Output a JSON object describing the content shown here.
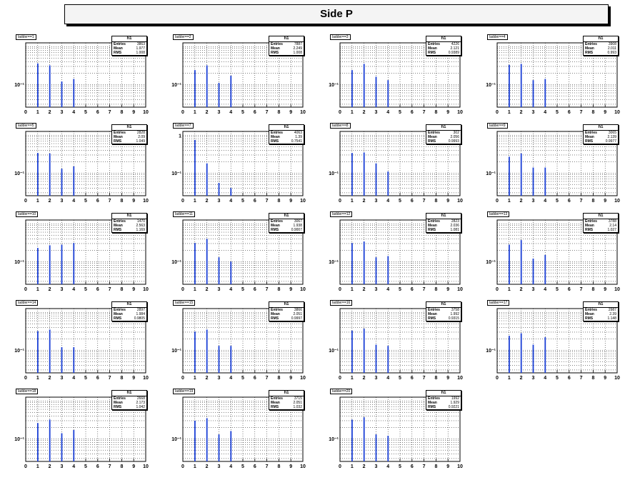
{
  "title": "Side P",
  "chart_data": [
    {
      "type": "bar",
      "label": "ladder==1",
      "stats": {
        "name": "h1",
        "entries": "3863",
        "mean": "1.977",
        "rms": "1.008"
      },
      "x": [
        1,
        2,
        3,
        4
      ],
      "values": [
        0.36,
        0.32,
        0.12,
        0.14
      ],
      "xlim": [
        0,
        10
      ],
      "xticks": [
        0,
        1,
        2,
        3,
        4,
        5,
        6,
        7,
        8,
        9,
        10
      ],
      "yscale": "log",
      "ytick_label": "10⁻¹"
    },
    {
      "type": "bar",
      "label": "ladder==2",
      "stats": {
        "name": "h1",
        "entries": "7887",
        "mean": "2.249",
        "rms": "1.008"
      },
      "x": [
        1,
        2,
        3,
        4
      ],
      "values": [
        0.24,
        0.32,
        0.11,
        0.17
      ],
      "xlim": [
        0,
        10
      ],
      "xticks": [
        0,
        1,
        2,
        3,
        4,
        5,
        6,
        7,
        8,
        9,
        10
      ],
      "yscale": "log",
      "ytick_label": "10⁻¹"
    },
    {
      "type": "bar",
      "label": "ladder==3",
      "stats": {
        "name": "h1",
        "entries": "4226",
        "mean": "2.121",
        "rms": "0.9389"
      },
      "x": [
        1,
        2,
        3,
        4
      ],
      "values": [
        0.24,
        0.35,
        0.16,
        0.13
      ],
      "xlim": [
        0,
        10
      ],
      "xticks": [
        0,
        1,
        2,
        3,
        4,
        5,
        6,
        7,
        8,
        9,
        10
      ],
      "yscale": "log",
      "ytick_label": "10⁻¹"
    },
    {
      "type": "bar",
      "label": "ladder==4",
      "stats": {
        "name": "h1",
        "entries": "3908",
        "mean": "2.011",
        "rms": "0.993"
      },
      "x": [
        1,
        2,
        3,
        4
      ],
      "values": [
        0.33,
        0.35,
        0.13,
        0.14
      ],
      "xlim": [
        0,
        10
      ],
      "xticks": [
        0,
        1,
        2,
        3,
        4,
        5,
        6,
        7,
        8,
        9,
        10
      ],
      "yscale": "log",
      "ytick_label": "10⁻¹"
    },
    {
      "type": "bar",
      "label": "ladder==5",
      "stats": {
        "name": "h1",
        "entries": "2828",
        "mean": "2.09",
        "rms": "1.049"
      },
      "x": [
        1,
        2,
        3,
        4
      ],
      "values": [
        0.34,
        0.33,
        0.13,
        0.15
      ],
      "xlim": [
        0,
        10
      ],
      "xticks": [
        0,
        1,
        2,
        3,
        4,
        5,
        6,
        7,
        8,
        9,
        10
      ],
      "yscale": "log",
      "ytick_label": "10⁻¹"
    },
    {
      "type": "bar",
      "label": "ladder==7",
      "stats": {
        "name": "h1",
        "entries": "4063",
        "mean": "1.39",
        "rms": "0.7541"
      },
      "x": [
        1,
        2,
        3,
        4
      ],
      "values": [
        0.75,
        0.18,
        0.055,
        0.04
      ],
      "xlim": [
        0,
        10
      ],
      "xticks": [
        0,
        1,
        2,
        3,
        4,
        5,
        6,
        7,
        8,
        9,
        10
      ],
      "yscale": "log",
      "ytick_label": "10⁻¹",
      "ytick_top": "1"
    },
    {
      "type": "bar",
      "label": "ladder==8",
      "stats": {
        "name": "h1",
        "entries": "302",
        "mean": "2.056",
        "rms": "0.9993"
      },
      "x": [
        1,
        2,
        3,
        4
      ],
      "values": [
        0.34,
        0.35,
        0.18,
        0.11
      ],
      "xlim": [
        0,
        10
      ],
      "xticks": [
        0,
        1,
        2,
        3,
        4,
        5,
        6,
        7,
        8,
        9,
        10
      ],
      "yscale": "log",
      "ytick_label": "10⁻¹"
    },
    {
      "type": "bar",
      "label": "ladder==9",
      "stats": {
        "name": "h1",
        "entries": "3065",
        "mean": "2.139",
        "rms": "0.9977"
      },
      "x": [
        1,
        2,
        3,
        4
      ],
      "values": [
        0.27,
        0.33,
        0.14,
        0.14
      ],
      "xlim": [
        0,
        10
      ],
      "xticks": [
        0,
        1,
        2,
        3,
        4,
        5,
        6,
        7,
        8,
        9,
        10
      ],
      "yscale": "log",
      "ytick_label": "10⁻¹"
    },
    {
      "type": "bar",
      "label": "ladder==10",
      "stats": {
        "name": "h1",
        "entries": "1470",
        "mean": "2.563",
        "rms": "1.169"
      },
      "x": [
        1,
        2,
        3,
        4
      ],
      "values": [
        0.23,
        0.27,
        0.28,
        0.31
      ],
      "xlim": [
        0,
        10
      ],
      "xticks": [
        0,
        1,
        2,
        3,
        4,
        5,
        6,
        7,
        8,
        9,
        10
      ],
      "yscale": "log",
      "ytick_label": "10⁻¹"
    },
    {
      "type": "bar",
      "label": "ladder==11",
      "stats": {
        "name": "h1",
        "entries": "3067",
        "mean": "1.938",
        "rms": "0.9007"
      },
      "x": [
        1,
        2,
        3,
        4
      ],
      "values": [
        0.31,
        0.4,
        0.13,
        0.1
      ],
      "xlim": [
        0,
        10
      ],
      "xticks": [
        0,
        1,
        2,
        3,
        4,
        5,
        6,
        7,
        8,
        9,
        10
      ],
      "yscale": "log",
      "ytick_label": "10⁻¹"
    },
    {
      "type": "bar",
      "label": "ladder==12",
      "stats": {
        "name": "h1",
        "entries": "2823",
        "mean": "2.036",
        "rms": "1.081"
      },
      "x": [
        1,
        2,
        3,
        4
      ],
      "values": [
        0.31,
        0.34,
        0.13,
        0.14
      ],
      "xlim": [
        0,
        10
      ],
      "xticks": [
        0,
        1,
        2,
        3,
        4,
        5,
        6,
        7,
        8,
        9,
        10
      ],
      "yscale": "log",
      "ytick_label": "10⁻¹"
    },
    {
      "type": "bar",
      "label": "ladder==13",
      "stats": {
        "name": "h1",
        "entries": "3788",
        "mean": "2.14",
        "rms": "1.027"
      },
      "x": [
        1,
        2,
        3,
        4
      ],
      "values": [
        0.28,
        0.37,
        0.12,
        0.15
      ],
      "xlim": [
        0,
        10
      ],
      "xticks": [
        0,
        1,
        2,
        3,
        4,
        5,
        6,
        7,
        8,
        9,
        10
      ],
      "yscale": "log",
      "ytick_label": "10⁻¹"
    },
    {
      "type": "bar",
      "label": "ladder==14",
      "stats": {
        "name": "h1",
        "entries": "2897",
        "mean": "1.984",
        "rms": "0.9805"
      },
      "x": [
        1,
        2,
        3,
        4
      ],
      "values": [
        0.32,
        0.35,
        0.12,
        0.12
      ],
      "xlim": [
        0,
        10
      ],
      "xticks": [
        0,
        1,
        2,
        3,
        4,
        5,
        6,
        7,
        8,
        9,
        10
      ],
      "yscale": "log",
      "ytick_label": "10⁻¹"
    },
    {
      "type": "bar",
      "label": "ladder==15",
      "stats": {
        "name": "h1",
        "entries": "3866",
        "mean": "2.051",
        "rms": "0.9997"
      },
      "x": [
        1,
        2,
        3,
        4
      ],
      "values": [
        0.31,
        0.35,
        0.13,
        0.13
      ],
      "xlim": [
        0,
        10
      ],
      "xticks": [
        0,
        1,
        2,
        3,
        4,
        5,
        6,
        7,
        8,
        9,
        10
      ],
      "yscale": "log",
      "ytick_label": "10⁻¹"
    },
    {
      "type": "bar",
      "label": "ladder==16",
      "stats": {
        "name": "h1",
        "entries": "3758",
        "mean": "1.992",
        "rms": "0.9315"
      },
      "x": [
        1,
        2,
        3,
        4
      ],
      "values": [
        0.33,
        0.37,
        0.14,
        0.13
      ],
      "xlim": [
        0,
        10
      ],
      "xticks": [
        0,
        1,
        2,
        3,
        4,
        5,
        6,
        7,
        8,
        9,
        10
      ],
      "yscale": "log",
      "ytick_label": "10⁻¹"
    },
    {
      "type": "bar",
      "label": "ladder==17",
      "stats": {
        "name": "h1",
        "entries": "2987",
        "mean": "2.39",
        "rms": "1.148"
      },
      "x": [
        1,
        2,
        3,
        4
      ],
      "values": [
        0.24,
        0.28,
        0.14,
        0.22
      ],
      "xlim": [
        0,
        10
      ],
      "xticks": [
        0,
        1,
        2,
        3,
        4,
        5,
        6,
        7,
        8,
        9,
        10
      ],
      "yscale": "log",
      "ytick_label": "10⁻¹"
    },
    {
      "type": "bar",
      "label": "ladder==18",
      "stats": {
        "name": "h1",
        "entries": "2668",
        "mean": "2.173",
        "rms": "1.042"
      },
      "x": [
        1,
        2,
        3,
        4
      ],
      "values": [
        0.26,
        0.32,
        0.14,
        0.17
      ],
      "xlim": [
        0,
        10
      ],
      "xticks": [
        0,
        1,
        2,
        3,
        4,
        5,
        6,
        7,
        8,
        9,
        10
      ],
      "yscale": "log",
      "ytick_label": "10⁻¹"
    },
    {
      "type": "bar",
      "label": "ladder==19",
      "stats": {
        "name": "h1",
        "entries": "3715",
        "mean": "2.051",
        "rms": "1.032"
      },
      "x": [
        1,
        2,
        3,
        4
      ],
      "values": [
        0.3,
        0.35,
        0.13,
        0.16
      ],
      "xlim": [
        0,
        10
      ],
      "xticks": [
        0,
        1,
        2,
        3,
        4,
        5,
        6,
        7,
        8,
        9,
        10
      ],
      "yscale": "log",
      "ytick_label": "10⁻¹"
    },
    {
      "type": "bar",
      "label": "ladder==20",
      "stats": {
        "name": "h1",
        "entries": "1992",
        "mean": "1.929",
        "rms": "0.9221"
      },
      "x": [
        1,
        2,
        3,
        4
      ],
      "values": [
        0.32,
        0.37,
        0.13,
        0.12
      ],
      "xlim": [
        0,
        10
      ],
      "xticks": [
        0,
        1,
        2,
        3,
        4,
        5,
        6,
        7,
        8,
        9,
        10
      ],
      "yscale": "log",
      "ytick_label": "10⁻¹"
    }
  ],
  "colors": {
    "bar": "#1a3fd6",
    "frame": "#000000",
    "grid": "#000000"
  }
}
